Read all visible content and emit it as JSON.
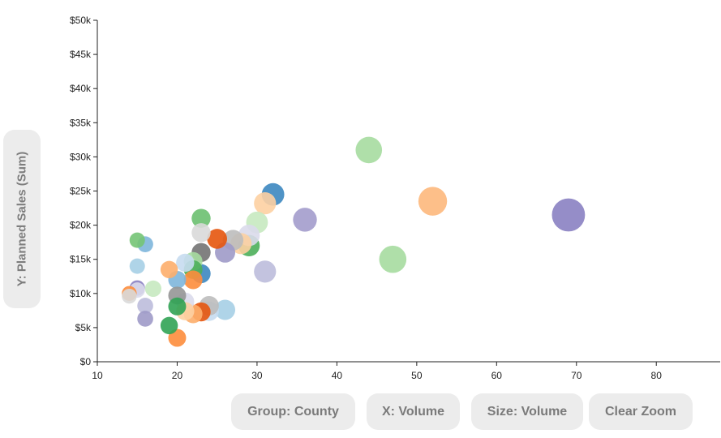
{
  "controls": {
    "group_label": "Group: County",
    "x_label": "X: Volume",
    "size_label": "Size: Volume",
    "clear_zoom_label": "Clear Zoom"
  },
  "chart_data": {
    "type": "scatter",
    "ylabel": "Y: Planned Sales (Sum)",
    "xlabel": "",
    "xlim": [
      10,
      88
    ],
    "ylim": [
      0,
      50000
    ],
    "x_ticks": [
      10,
      20,
      30,
      40,
      50,
      60,
      70,
      80
    ],
    "x_tick_labels": [
      "10",
      "20",
      "30",
      "40",
      "50",
      "60",
      "70",
      "80"
    ],
    "y_ticks": [
      0,
      5000,
      10000,
      15000,
      20000,
      25000,
      30000,
      35000,
      40000,
      45000,
      50000
    ],
    "y_tick_labels": [
      "$0",
      "$5k",
      "$10k",
      "$15k",
      "$20k",
      "$25k",
      "$30k",
      "$35k",
      "$40k",
      "$45k",
      "$50k"
    ],
    "points": [
      {
        "x": 69,
        "y": 21500,
        "color": "#8a81c2"
      },
      {
        "x": 44,
        "y": 31000,
        "color": "#a6dca0"
      },
      {
        "x": 52,
        "y": 23500,
        "color": "#fdb87c"
      },
      {
        "x": 47,
        "y": 15000,
        "color": "#a6dca0"
      },
      {
        "x": 36,
        "y": 20800,
        "color": "#a39ccc"
      },
      {
        "x": 32,
        "y": 24500,
        "color": "#3c87c0"
      },
      {
        "x": 31,
        "y": 23200,
        "color": "#fdd0a2"
      },
      {
        "x": 30,
        "y": 20400,
        "color": "#c7e9c0"
      },
      {
        "x": 29,
        "y": 17000,
        "color": "#4daf5a"
      },
      {
        "x": 29,
        "y": 18500,
        "color": "#dadaeb"
      },
      {
        "x": 28,
        "y": 17300,
        "color": "#fdd0a2"
      },
      {
        "x": 27,
        "y": 17800,
        "color": "#bdbdbd"
      },
      {
        "x": 31,
        "y": 13200,
        "color": "#bcbddc"
      },
      {
        "x": 26,
        "y": 16000,
        "color": "#9e9ac8"
      },
      {
        "x": 26,
        "y": 7600,
        "color": "#a6cfe5"
      },
      {
        "x": 25,
        "y": 18000,
        "color": "#e6550d"
      },
      {
        "x": 24,
        "y": 7400,
        "color": "#c6dbef"
      },
      {
        "x": 24,
        "y": 8200,
        "color": "#bdbdbd"
      },
      {
        "x": 23,
        "y": 21000,
        "color": "#6cc070"
      },
      {
        "x": 23,
        "y": 18900,
        "color": "#d9d9d9"
      },
      {
        "x": 23,
        "y": 16000,
        "color": "#737373"
      },
      {
        "x": 23,
        "y": 12900,
        "color": "#3c87c0"
      },
      {
        "x": 23,
        "y": 7300,
        "color": "#e6550d"
      },
      {
        "x": 22,
        "y": 14700,
        "color": "#a6dca0"
      },
      {
        "x": 22,
        "y": 13500,
        "color": "#4daf5a"
      },
      {
        "x": 22,
        "y": 12000,
        "color": "#fd8d3c"
      },
      {
        "x": 22,
        "y": 7000,
        "color": "#fdae6b"
      },
      {
        "x": 21,
        "y": 14500,
        "color": "#c6dbef"
      },
      {
        "x": 21,
        "y": 8800,
        "color": "#dadaeb"
      },
      {
        "x": 21,
        "y": 7400,
        "color": "#fdd0a2"
      },
      {
        "x": 20,
        "y": 12000,
        "color": "#7eb6dc"
      },
      {
        "x": 20,
        "y": 9700,
        "color": "#969696"
      },
      {
        "x": 20,
        "y": 8100,
        "color": "#31a354"
      },
      {
        "x": 20,
        "y": 3500,
        "color": "#fd8d3c"
      },
      {
        "x": 19,
        "y": 13500,
        "color": "#fdae6b"
      },
      {
        "x": 19,
        "y": 5300,
        "color": "#31a354"
      },
      {
        "x": 17,
        "y": 10700,
        "color": "#c7e9c0"
      },
      {
        "x": 16,
        "y": 17200,
        "color": "#7eb6dc"
      },
      {
        "x": 16,
        "y": 8200,
        "color": "#bcbddc"
      },
      {
        "x": 16,
        "y": 6300,
        "color": "#9e9ac8"
      },
      {
        "x": 15,
        "y": 17800,
        "color": "#74c476"
      },
      {
        "x": 15,
        "y": 14000,
        "color": "#a6cfe5"
      },
      {
        "x": 15,
        "y": 10800,
        "color": "#8a81c2"
      },
      {
        "x": 15,
        "y": 10500,
        "color": "#dadaeb"
      },
      {
        "x": 14,
        "y": 10000,
        "color": "#fd8d3c"
      },
      {
        "x": 14,
        "y": 9600,
        "color": "#d9d9d9"
      }
    ]
  }
}
